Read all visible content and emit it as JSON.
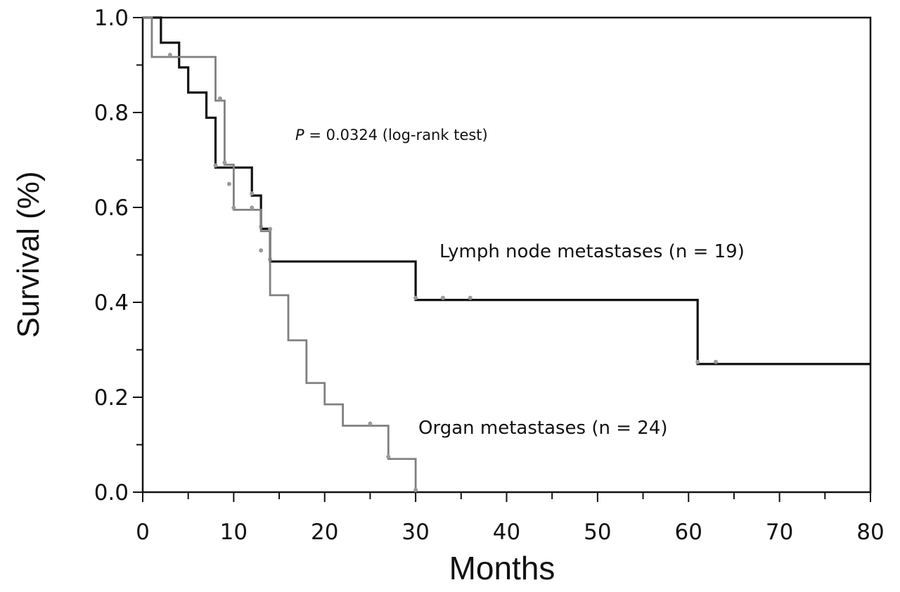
{
  "chart_data": {
    "type": "line",
    "title": "",
    "xlabel": "Months",
    "ylabel": "Survival (%)",
    "xlim": [
      0,
      80
    ],
    "ylim": [
      0,
      1
    ],
    "x_ticks": [
      0,
      10,
      20,
      30,
      40,
      50,
      60,
      70,
      80
    ],
    "x_tick_labels": [
      "0",
      "10",
      "20",
      "30",
      "40",
      "50",
      "60",
      "70",
      "80"
    ],
    "y_ticks": [
      0,
      0.2,
      0.4,
      0.6,
      0.8,
      1.0
    ],
    "y_tick_labels": [
      "0.0",
      "0.2",
      "0.4",
      "0.6",
      "0.8",
      "1.0"
    ],
    "grid": false,
    "annotation": {
      "p_symbol": "P",
      "p_text": " = 0.0324 (log-rank test)"
    },
    "series": [
      {
        "name": "Lymph node metastases (n = 19)",
        "color": "#111111",
        "steps": [
          [
            0,
            1.0
          ],
          [
            2,
            0.947
          ],
          [
            4,
            0.895
          ],
          [
            5,
            0.842
          ],
          [
            7,
            0.789
          ],
          [
            8,
            0.684
          ],
          [
            12,
            0.625
          ],
          [
            13,
            0.555
          ],
          [
            14,
            0.486
          ],
          [
            30,
            0.405
          ],
          [
            61,
            0.27
          ],
          [
            80,
            0.27
          ]
        ],
        "censored": [
          [
            8,
            0.684
          ],
          [
            12,
            0.625
          ],
          [
            13,
            0.555
          ],
          [
            14,
            0.486
          ],
          [
            30,
            0.405
          ],
          [
            33,
            0.405
          ],
          [
            36,
            0.405
          ],
          [
            61,
            0.27
          ],
          [
            63,
            0.27
          ]
        ]
      },
      {
        "name": "Organ metastases (n = 24)",
        "color": "#808080",
        "steps": [
          [
            0,
            1.0
          ],
          [
            1,
            0.917
          ],
          [
            4,
            0.917
          ],
          [
            8,
            0.825
          ],
          [
            9,
            0.69
          ],
          [
            10,
            0.595
          ],
          [
            13,
            0.55
          ],
          [
            14,
            0.415
          ],
          [
            16,
            0.32
          ],
          [
            18,
            0.23
          ],
          [
            20,
            0.185
          ],
          [
            22,
            0.14
          ],
          [
            27,
            0.07
          ],
          [
            30,
            0.0
          ]
        ],
        "censored": [
          [
            3,
            0.917
          ],
          [
            8.5,
            0.825
          ],
          [
            9,
            0.69
          ],
          [
            9.5,
            0.645
          ],
          [
            10,
            0.595
          ],
          [
            12,
            0.595
          ],
          [
            13,
            0.505
          ],
          [
            14,
            0.55
          ],
          [
            25,
            0.14
          ],
          [
            27,
            0.07
          ],
          [
            30,
            0.0
          ]
        ]
      }
    ]
  }
}
